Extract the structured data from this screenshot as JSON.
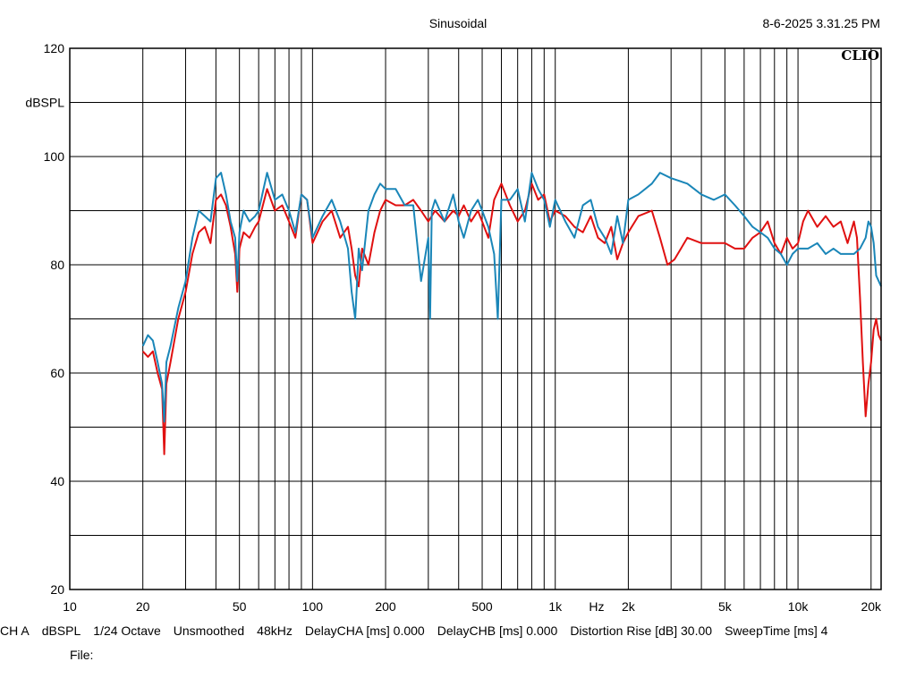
{
  "header": {
    "title": "Sinusoidal",
    "timestamp": "8-6-2025 3.31.25 PM",
    "logo": "CLIO"
  },
  "footer": {
    "info": [
      "CH A",
      "dBSPL",
      "1/24 Octave",
      "Unsmoothed",
      "48kHz",
      "DelayCHA [ms] 0.000",
      "DelayCHB [ms] 0.000",
      "Distortion Rise [dB] 30.00",
      "SweepTime [ms] 4"
    ],
    "file_label": "File:"
  },
  "chart_data": {
    "type": "line",
    "title": "Sinusoidal",
    "ylabel": "dBSPL",
    "xlabel": "Hz",
    "x_scale": "log",
    "xlim": [
      10,
      22000
    ],
    "ylim": [
      20,
      120
    ],
    "grid": true,
    "x_ticks": [
      {
        "v": 10,
        "label": "10"
      },
      {
        "v": 20,
        "label": "20"
      },
      {
        "v": 50,
        "label": "50"
      },
      {
        "v": 100,
        "label": "100"
      },
      {
        "v": 200,
        "label": "200"
      },
      {
        "v": 500,
        "label": "500"
      },
      {
        "v": 1000,
        "label": "1k"
      },
      {
        "v": 2000,
        "label": "2k"
      },
      {
        "v": 5000,
        "label": "5k"
      },
      {
        "v": 10000,
        "label": "10k"
      },
      {
        "v": 20000,
        "label": "20k"
      }
    ],
    "x_unit_tick": {
      "v": 1480,
      "label": "Hz"
    },
    "y_ticks": [
      {
        "v": 120,
        "label": "120"
      },
      {
        "v": 100,
        "label": "100"
      },
      {
        "v": 80,
        "label": "80"
      },
      {
        "v": 60,
        "label": "60"
      },
      {
        "v": 40,
        "label": "40"
      },
      {
        "v": 20,
        "label": "20"
      }
    ],
    "y_unit_tick": {
      "v": 110,
      "label": "dBSPL"
    },
    "colors": {
      "series_red": "#e01010",
      "series_blue": "#1a86b8",
      "grid": "#000000"
    },
    "series": [
      {
        "color": "#e01010",
        "points": [
          [
            20,
            64
          ],
          [
            21,
            63
          ],
          [
            22,
            64
          ],
          [
            23,
            60
          ],
          [
            24,
            57
          ],
          [
            24.5,
            45
          ],
          [
            25,
            58
          ],
          [
            26,
            62
          ],
          [
            28,
            70
          ],
          [
            30,
            75
          ],
          [
            32,
            82
          ],
          [
            34,
            86
          ],
          [
            36,
            87
          ],
          [
            38,
            84
          ],
          [
            40,
            92
          ],
          [
            42,
            93
          ],
          [
            44,
            91
          ],
          [
            46,
            87
          ],
          [
            48,
            82
          ],
          [
            49,
            75
          ],
          [
            50,
            83
          ],
          [
            52,
            86
          ],
          [
            55,
            85
          ],
          [
            58,
            87
          ],
          [
            60,
            88
          ],
          [
            65,
            94
          ],
          [
            70,
            90
          ],
          [
            75,
            91
          ],
          [
            80,
            88
          ],
          [
            85,
            85
          ],
          [
            90,
            93
          ],
          [
            95,
            92
          ],
          [
            100,
            84
          ],
          [
            110,
            88
          ],
          [
            120,
            90
          ],
          [
            130,
            85
          ],
          [
            140,
            87
          ],
          [
            145,
            83
          ],
          [
            150,
            78
          ],
          [
            155,
            76
          ],
          [
            160,
            83
          ],
          [
            170,
            80
          ],
          [
            180,
            86
          ],
          [
            190,
            90
          ],
          [
            200,
            92
          ],
          [
            220,
            91
          ],
          [
            240,
            91
          ],
          [
            260,
            92
          ],
          [
            280,
            90
          ],
          [
            300,
            88
          ],
          [
            320,
            90
          ],
          [
            350,
            88
          ],
          [
            380,
            90
          ],
          [
            400,
            89
          ],
          [
            420,
            91
          ],
          [
            450,
            88
          ],
          [
            480,
            90
          ],
          [
            500,
            88
          ],
          [
            530,
            85
          ],
          [
            560,
            92
          ],
          [
            600,
            95
          ],
          [
            650,
            91
          ],
          [
            700,
            88
          ],
          [
            750,
            90
          ],
          [
            800,
            95
          ],
          [
            850,
            92
          ],
          [
            900,
            93
          ],
          [
            950,
            88
          ],
          [
            1000,
            90
          ],
          [
            1100,
            89
          ],
          [
            1200,
            87
          ],
          [
            1300,
            86
          ],
          [
            1400,
            89
          ],
          [
            1500,
            85
          ],
          [
            1600,
            84
          ],
          [
            1700,
            87
          ],
          [
            1800,
            81
          ],
          [
            1900,
            84
          ],
          [
            2000,
            86
          ],
          [
            2200,
            89
          ],
          [
            2500,
            90
          ],
          [
            2700,
            85
          ],
          [
            2900,
            80
          ],
          [
            3100,
            81
          ],
          [
            3500,
            85
          ],
          [
            4000,
            84
          ],
          [
            5000,
            84
          ],
          [
            5500,
            83
          ],
          [
            6000,
            83
          ],
          [
            6500,
            85
          ],
          [
            7000,
            86
          ],
          [
            7500,
            88
          ],
          [
            8000,
            84
          ],
          [
            8500,
            82
          ],
          [
            9000,
            85
          ],
          [
            9500,
            83
          ],
          [
            10000,
            84
          ],
          [
            10500,
            88
          ],
          [
            11000,
            90
          ],
          [
            12000,
            87
          ],
          [
            13000,
            89
          ],
          [
            14000,
            87
          ],
          [
            15000,
            88
          ],
          [
            16000,
            84
          ],
          [
            17000,
            88
          ],
          [
            17500,
            85
          ],
          [
            18000,
            74
          ],
          [
            18500,
            62
          ],
          [
            19000,
            52
          ],
          [
            19500,
            58
          ],
          [
            20000,
            62
          ],
          [
            20500,
            68
          ],
          [
            21000,
            70
          ],
          [
            21500,
            67
          ],
          [
            22000,
            66
          ]
        ]
      },
      {
        "color": "#1a86b8",
        "points": [
          [
            20,
            65
          ],
          [
            21,
            67
          ],
          [
            22,
            66
          ],
          [
            23,
            62
          ],
          [
            24,
            58
          ],
          [
            24.5,
            51
          ],
          [
            25,
            62
          ],
          [
            26,
            65
          ],
          [
            28,
            72
          ],
          [
            30,
            77
          ],
          [
            32,
            85
          ],
          [
            34,
            90
          ],
          [
            36,
            89
          ],
          [
            38,
            88
          ],
          [
            40,
            96
          ],
          [
            42,
            97
          ],
          [
            44,
            93
          ],
          [
            46,
            88
          ],
          [
            48,
            85
          ],
          [
            49,
            77
          ],
          [
            50,
            86
          ],
          [
            52,
            90
          ],
          [
            55,
            88
          ],
          [
            58,
            89
          ],
          [
            60,
            90
          ],
          [
            65,
            97
          ],
          [
            70,
            92
          ],
          [
            75,
            93
          ],
          [
            80,
            90
          ],
          [
            85,
            86
          ],
          [
            90,
            93
          ],
          [
            95,
            92
          ],
          [
            100,
            85
          ],
          [
            110,
            89
          ],
          [
            120,
            92
          ],
          [
            130,
            88
          ],
          [
            140,
            83
          ],
          [
            145,
            75
          ],
          [
            150,
            70
          ],
          [
            155,
            83
          ],
          [
            160,
            79
          ],
          [
            170,
            90
          ],
          [
            180,
            93
          ],
          [
            190,
            95
          ],
          [
            200,
            94
          ],
          [
            220,
            94
          ],
          [
            240,
            91
          ],
          [
            260,
            91
          ],
          [
            280,
            77
          ],
          [
            300,
            85
          ],
          [
            305,
            70
          ],
          [
            310,
            90
          ],
          [
            320,
            92
          ],
          [
            350,
            88
          ],
          [
            380,
            93
          ],
          [
            400,
            88
          ],
          [
            420,
            85
          ],
          [
            450,
            90
          ],
          [
            480,
            92
          ],
          [
            500,
            90
          ],
          [
            530,
            87
          ],
          [
            560,
            82
          ],
          [
            580,
            70
          ],
          [
            600,
            92
          ],
          [
            650,
            92
          ],
          [
            700,
            94
          ],
          [
            750,
            88
          ],
          [
            800,
            97
          ],
          [
            850,
            94
          ],
          [
            900,
            92
          ],
          [
            950,
            87
          ],
          [
            1000,
            92
          ],
          [
            1100,
            88
          ],
          [
            1200,
            85
          ],
          [
            1300,
            91
          ],
          [
            1400,
            92
          ],
          [
            1500,
            87
          ],
          [
            1600,
            85
          ],
          [
            1700,
            82
          ],
          [
            1800,
            89
          ],
          [
            1900,
            84
          ],
          [
            2000,
            92
          ],
          [
            2200,
            93
          ],
          [
            2500,
            95
          ],
          [
            2700,
            97
          ],
          [
            3000,
            96
          ],
          [
            3500,
            95
          ],
          [
            4000,
            93
          ],
          [
            4500,
            92
          ],
          [
            5000,
            93
          ],
          [
            5500,
            91
          ],
          [
            6000,
            89
          ],
          [
            6500,
            87
          ],
          [
            7000,
            86
          ],
          [
            7500,
            85
          ],
          [
            8000,
            83
          ],
          [
            8500,
            82
          ],
          [
            9000,
            80
          ],
          [
            9500,
            82
          ],
          [
            10000,
            83
          ],
          [
            11000,
            83
          ],
          [
            12000,
            84
          ],
          [
            13000,
            82
          ],
          [
            14000,
            83
          ],
          [
            15000,
            82
          ],
          [
            16000,
            82
          ],
          [
            17000,
            82
          ],
          [
            18000,
            83
          ],
          [
            19000,
            85
          ],
          [
            19500,
            88
          ],
          [
            20000,
            87
          ],
          [
            20500,
            84
          ],
          [
            21000,
            78
          ],
          [
            22000,
            76
          ]
        ]
      }
    ]
  }
}
